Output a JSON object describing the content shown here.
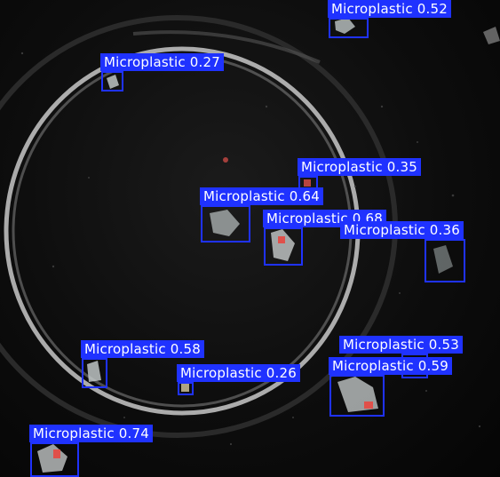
{
  "image": {
    "description_free": true
  },
  "detections": [
    {
      "id": "d1",
      "label": "Microplastic",
      "score": "0.52"
    },
    {
      "id": "d2",
      "label": "Microplastic",
      "score": "0.27"
    },
    {
      "id": "d3",
      "label": "Microplastic",
      "score": "0.35"
    },
    {
      "id": "d4",
      "label": "Microplastic",
      "score": "0.64"
    },
    {
      "id": "d5",
      "label": "Microplastic",
      "score": "0.68"
    },
    {
      "id": "d6",
      "label": "Microplastic",
      "score": "0.36"
    },
    {
      "id": "d7",
      "label": "Microplastic",
      "score": "0.58"
    },
    {
      "id": "d8",
      "label": "Microplastic",
      "score": "0.26"
    },
    {
      "id": "d9",
      "label": "Microplastic",
      "score": "0.53"
    },
    {
      "id": "d10",
      "label": "Microplastic",
      "score": "0.59"
    },
    {
      "id": "d11",
      "label": "Microplastic",
      "score": "0.74"
    }
  ],
  "colors": {
    "box": "#1f32ff",
    "label_text": "#ffffff",
    "background": "#0d0d0d",
    "dish_rim": "#d8d8d8",
    "particle": "#cfd6d6",
    "particle_red": "#e0504a"
  }
}
